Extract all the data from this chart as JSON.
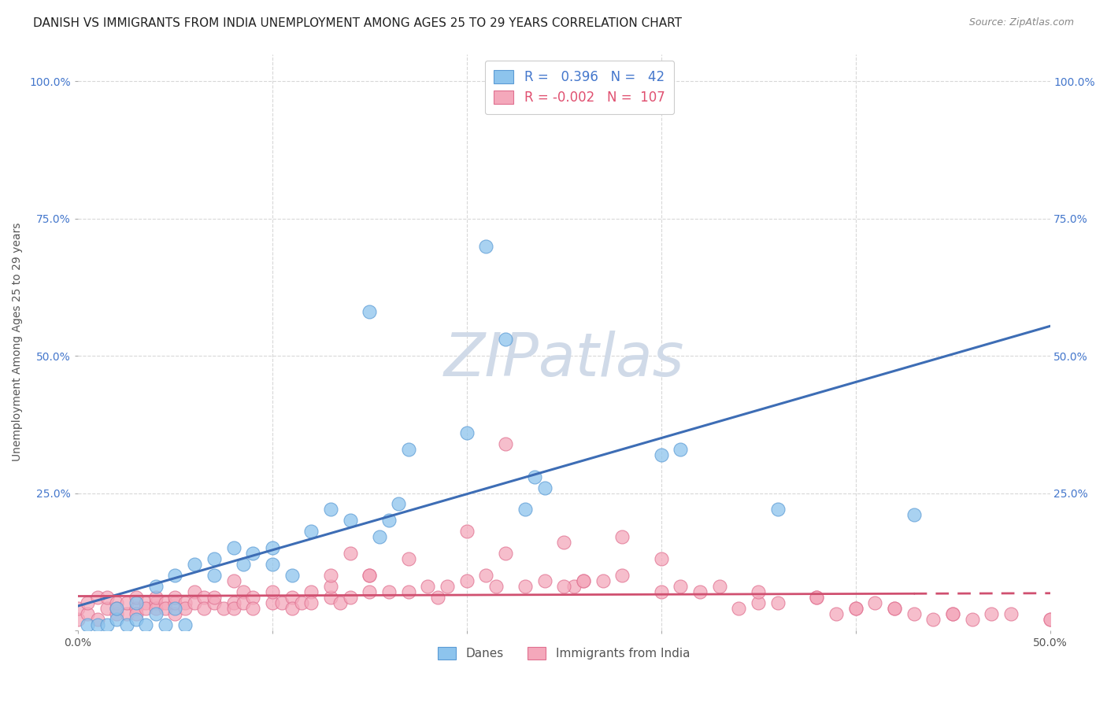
{
  "title": "DANISH VS IMMIGRANTS FROM INDIA UNEMPLOYMENT AMONG AGES 25 TO 29 YEARS CORRELATION CHART",
  "source": "Source: ZipAtlas.com",
  "ylabel": "Unemployment Among Ages 25 to 29 years",
  "xlim": [
    0.0,
    0.5
  ],
  "ylim": [
    0.0,
    1.05
  ],
  "danes_color": "#8DC4ED",
  "india_color": "#F4A8BB",
  "danes_edge_color": "#5B9BD5",
  "india_edge_color": "#E07090",
  "danes_line_color": "#3D6DB5",
  "india_line_color": "#D05070",
  "danes_R": 0.396,
  "danes_N": 42,
  "india_R": -0.002,
  "india_N": 107,
  "danes_scatter_x": [
    0.005,
    0.01,
    0.015,
    0.02,
    0.02,
    0.025,
    0.03,
    0.03,
    0.035,
    0.04,
    0.04,
    0.045,
    0.05,
    0.05,
    0.055,
    0.06,
    0.07,
    0.07,
    0.08,
    0.085,
    0.09,
    0.1,
    0.1,
    0.11,
    0.12,
    0.13,
    0.14,
    0.15,
    0.155,
    0.16,
    0.165,
    0.17,
    0.2,
    0.21,
    0.22,
    0.23,
    0.235,
    0.24,
    0.3,
    0.31,
    0.36,
    0.43
  ],
  "danes_scatter_y": [
    0.01,
    0.01,
    0.01,
    0.02,
    0.04,
    0.01,
    0.02,
    0.05,
    0.01,
    0.08,
    0.03,
    0.01,
    0.1,
    0.04,
    0.01,
    0.12,
    0.13,
    0.1,
    0.15,
    0.12,
    0.14,
    0.15,
    0.12,
    0.1,
    0.18,
    0.22,
    0.2,
    0.58,
    0.17,
    0.2,
    0.23,
    0.33,
    0.36,
    0.7,
    0.53,
    0.22,
    0.28,
    0.26,
    0.32,
    0.33,
    0.22,
    0.21
  ],
  "india_scatter_x": [
    0.0,
    0.0,
    0.005,
    0.005,
    0.01,
    0.01,
    0.015,
    0.015,
    0.02,
    0.02,
    0.02,
    0.025,
    0.025,
    0.03,
    0.03,
    0.03,
    0.035,
    0.035,
    0.04,
    0.04,
    0.04,
    0.045,
    0.045,
    0.05,
    0.05,
    0.05,
    0.055,
    0.055,
    0.06,
    0.06,
    0.065,
    0.065,
    0.07,
    0.07,
    0.075,
    0.08,
    0.08,
    0.085,
    0.085,
    0.09,
    0.09,
    0.1,
    0.1,
    0.105,
    0.11,
    0.11,
    0.115,
    0.12,
    0.12,
    0.13,
    0.13,
    0.135,
    0.14,
    0.14,
    0.15,
    0.15,
    0.16,
    0.17,
    0.18,
    0.185,
    0.19,
    0.2,
    0.21,
    0.215,
    0.22,
    0.23,
    0.24,
    0.25,
    0.255,
    0.26,
    0.27,
    0.28,
    0.3,
    0.31,
    0.32,
    0.33,
    0.34,
    0.35,
    0.36,
    0.38,
    0.39,
    0.4,
    0.41,
    0.42,
    0.43,
    0.44,
    0.45,
    0.46,
    0.48,
    0.5,
    0.15,
    0.2,
    0.22,
    0.25,
    0.28,
    0.3,
    0.13,
    0.35,
    0.38,
    0.4,
    0.42,
    0.45,
    0.47,
    0.5,
    0.08,
    0.17,
    0.26
  ],
  "india_scatter_y": [
    0.02,
    0.04,
    0.03,
    0.05,
    0.02,
    0.06,
    0.04,
    0.06,
    0.03,
    0.05,
    0.04,
    0.03,
    0.05,
    0.04,
    0.06,
    0.03,
    0.05,
    0.04,
    0.05,
    0.04,
    0.06,
    0.05,
    0.04,
    0.03,
    0.05,
    0.06,
    0.05,
    0.04,
    0.07,
    0.05,
    0.06,
    0.04,
    0.05,
    0.06,
    0.04,
    0.05,
    0.04,
    0.07,
    0.05,
    0.06,
    0.04,
    0.05,
    0.07,
    0.05,
    0.06,
    0.04,
    0.05,
    0.07,
    0.05,
    0.06,
    0.08,
    0.05,
    0.14,
    0.06,
    0.1,
    0.07,
    0.07,
    0.07,
    0.08,
    0.06,
    0.08,
    0.09,
    0.1,
    0.08,
    0.14,
    0.08,
    0.09,
    0.16,
    0.08,
    0.09,
    0.09,
    0.1,
    0.07,
    0.08,
    0.07,
    0.08,
    0.04,
    0.05,
    0.05,
    0.06,
    0.03,
    0.04,
    0.05,
    0.04,
    0.03,
    0.02,
    0.03,
    0.02,
    0.03,
    0.02,
    0.1,
    0.18,
    0.34,
    0.08,
    0.17,
    0.13,
    0.1,
    0.07,
    0.06,
    0.04,
    0.04,
    0.03,
    0.03,
    0.02,
    0.09,
    0.13,
    0.09
  ],
  "background_color": "#ffffff",
  "grid_color": "#d8d8d8",
  "watermark_color": "#d0dae8",
  "title_fontsize": 11,
  "axis_label_fontsize": 10,
  "tick_fontsize": 10
}
